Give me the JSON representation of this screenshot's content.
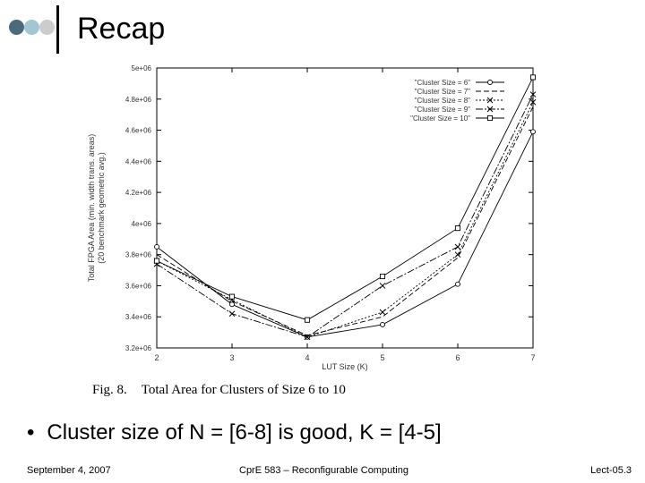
{
  "header": {
    "title": "Recap",
    "dot_colors": [
      "#4a6b7c",
      "#a3c6d0",
      "#cccccc"
    ]
  },
  "figure_caption": {
    "label": "Fig. 8.",
    "text": "Total Area for Clusters of Size 6 to 10"
  },
  "bullet": "Cluster size of N = [6-8] is good, K = [4-5]",
  "footer": {
    "date": "September 4, 2007",
    "course": "CprE 583 – Reconfigurable Computing",
    "lecture": "Lect-05.3"
  },
  "chart_data": {
    "type": "line",
    "x": [
      2,
      3,
      4,
      5,
      6,
      7
    ],
    "xlabel": "LUT Size (K)",
    "ylabel": "Total FPGA Area (min. width trans. areas)",
    "ylabel2": "(20 benchmark geometric avg.)",
    "xlim": [
      2,
      7
    ],
    "ylim": [
      3200000,
      5000000
    ],
    "y_ticks": [
      3200000,
      3400000,
      3600000,
      3800000,
      4000000,
      4200000,
      4400000,
      4600000,
      4800000,
      5000000
    ],
    "y_tick_labels": [
      "3.2e+06",
      "3.4e+06",
      "3.6e+06",
      "3.8e+06",
      "4e+06",
      "4.2e+06",
      "4.4e+06",
      "4.6e+06",
      "4.8e+06",
      "5e+06"
    ],
    "x_tick_labels": [
      "2",
      "3",
      "4",
      "5",
      "6",
      "7"
    ],
    "legend_position": "top-right",
    "grid": false,
    "series": [
      {
        "name": "\"Cluster Size = 6\"",
        "values": [
          3850000,
          3480000,
          3270000,
          3350000,
          3610000,
          4590000
        ],
        "dash": "",
        "marker": "circle"
      },
      {
        "name": "\"Cluster Size = 7\"",
        "values": [
          3800000,
          3500000,
          3280000,
          3400000,
          3780000,
          4750000
        ],
        "dash": "6 3",
        "marker": "none"
      },
      {
        "name": "\"Cluster Size = 8\"",
        "values": [
          3760000,
          3510000,
          3270000,
          3430000,
          3800000,
          4780000
        ],
        "dash": "2 2",
        "marker": "x"
      },
      {
        "name": "\"Cluster Size = 9\"",
        "values": [
          3740000,
          3420000,
          3270000,
          3600000,
          3850000,
          4830000
        ],
        "dash": "8 2 2 2",
        "marker": "x"
      },
      {
        "name": "\"Cluster Size = 10\"",
        "values": [
          3760000,
          3530000,
          3380000,
          3660000,
          3970000,
          4940000
        ],
        "dash": "",
        "marker": "square"
      }
    ]
  }
}
